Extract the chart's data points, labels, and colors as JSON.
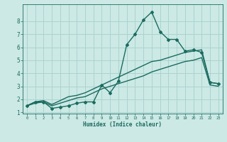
{
  "xlabel": "Humidex (Indice chaleur)",
  "bg_color": "#cce9e5",
  "grid_color": "#aad4cf",
  "line_color": "#1a6b60",
  "x_values": [
    0,
    1,
    2,
    3,
    4,
    5,
    6,
    7,
    8,
    9,
    10,
    11,
    12,
    13,
    14,
    15,
    16,
    17,
    18,
    19,
    20,
    21,
    22,
    23
  ],
  "curve1": [
    1.5,
    1.8,
    1.8,
    1.3,
    1.4,
    1.5,
    1.7,
    1.8,
    1.8,
    3.1,
    2.5,
    3.4,
    6.2,
    7.0,
    8.1,
    8.7,
    7.2,
    6.6,
    6.6,
    5.7,
    5.8,
    5.6,
    3.3,
    3.2
  ],
  "curve2": [
    1.5,
    1.8,
    1.9,
    1.6,
    1.9,
    2.2,
    2.3,
    2.5,
    2.8,
    3.1,
    3.4,
    3.7,
    4.0,
    4.3,
    4.6,
    4.9,
    5.0,
    5.2,
    5.4,
    5.6,
    5.7,
    5.8,
    3.3,
    3.2
  ],
  "curve3": [
    1.5,
    1.7,
    1.8,
    1.5,
    1.7,
    1.9,
    2.1,
    2.2,
    2.5,
    2.8,
    3.0,
    3.2,
    3.4,
    3.6,
    3.8,
    4.1,
    4.3,
    4.5,
    4.7,
    4.9,
    5.0,
    5.2,
    3.1,
    3.0
  ],
  "xlim": [
    -0.5,
    23.5
  ],
  "ylim": [
    0.9,
    9.3
  ],
  "yticks": [
    1,
    2,
    3,
    4,
    5,
    6,
    7,
    8
  ],
  "xticks": [
    0,
    1,
    2,
    3,
    4,
    5,
    6,
    7,
    8,
    9,
    10,
    11,
    12,
    13,
    14,
    15,
    16,
    17,
    18,
    19,
    20,
    21,
    22,
    23
  ]
}
